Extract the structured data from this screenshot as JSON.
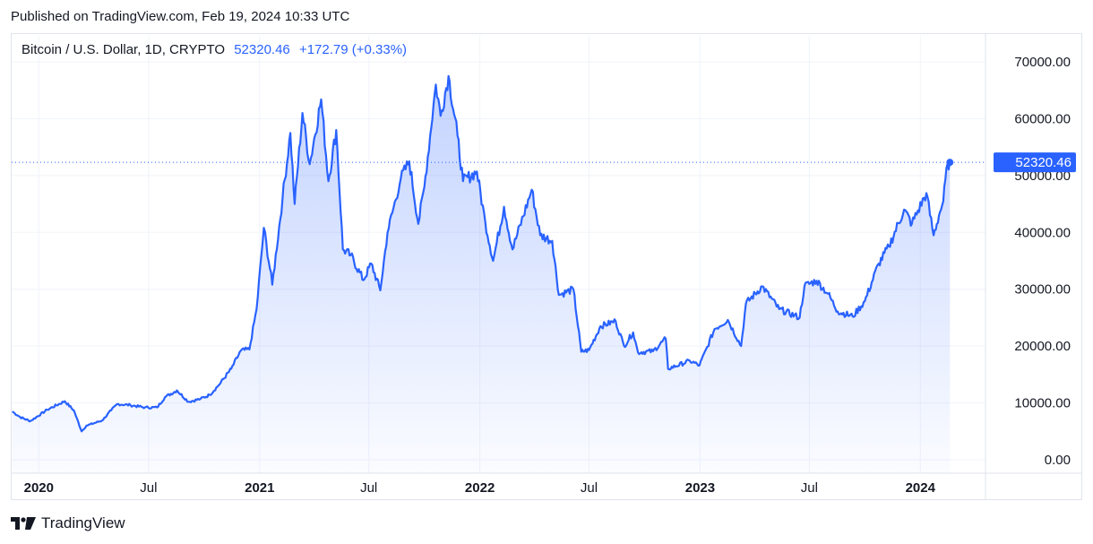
{
  "header": {
    "published": "Published on TradingView.com, Feb 19, 2024 10:33 UTC"
  },
  "legend": {
    "symbol": "Bitcoin / U.S. Dollar, 1D, CRYPTO",
    "price": "52320.46",
    "change": "+172.79 (+0.33%)"
  },
  "footer": {
    "brand": "TradingView"
  },
  "colors": {
    "line": "#2962ff",
    "fill_top": "#2962ff",
    "grid": "#f0f3fa",
    "badge_bg": "#2962ff",
    "badge_text": "#ffffff"
  },
  "chart_data": {
    "type": "area",
    "y_ticks": [
      "0.00",
      "10000.00",
      "20000.00",
      "30000.00",
      "40000.00",
      "50000.00",
      "60000.00",
      "70000.00"
    ],
    "ylim": [
      0,
      75000
    ],
    "x_ticks": [
      {
        "label": "2020",
        "date": "2020-01-01",
        "year": true
      },
      {
        "label": "Jul",
        "date": "2020-07-01",
        "year": false
      },
      {
        "label": "2021",
        "date": "2021-01-01",
        "year": true
      },
      {
        "label": "Jul",
        "date": "2021-07-01",
        "year": false
      },
      {
        "label": "2022",
        "date": "2022-01-01",
        "year": true
      },
      {
        "label": "Jul",
        "date": "2022-07-01",
        "year": false
      },
      {
        "label": "2023",
        "date": "2023-01-01",
        "year": true
      },
      {
        "label": "Jul",
        "date": "2023-07-01",
        "year": false
      },
      {
        "label": "2024",
        "date": "2024-01-01",
        "year": true
      }
    ],
    "xlim": [
      "2019-11-17",
      "2024-04-18"
    ],
    "last_price": {
      "value": 52320.46,
      "label": "52320.46"
    },
    "series": [
      {
        "points": [
          [
            "2019-11-18",
            8500
          ],
          [
            "2019-12-01",
            7500
          ],
          [
            "2019-12-18",
            6800
          ],
          [
            "2020-01-15",
            8800
          ],
          [
            "2020-02-13",
            10300
          ],
          [
            "2020-02-28",
            8700
          ],
          [
            "2020-03-12",
            5000
          ],
          [
            "2020-03-20",
            6000
          ],
          [
            "2020-04-15",
            6900
          ],
          [
            "2020-04-30",
            8700
          ],
          [
            "2020-05-10",
            9800
          ],
          [
            "2020-06-01",
            9600
          ],
          [
            "2020-06-25",
            9200
          ],
          [
            "2020-07-15",
            9200
          ],
          [
            "2020-07-28",
            11000
          ],
          [
            "2020-08-17",
            12200
          ],
          [
            "2020-09-05",
            10200
          ],
          [
            "2020-09-25",
            10700
          ],
          [
            "2020-10-10",
            11400
          ],
          [
            "2020-10-25",
            13100
          ],
          [
            "2020-11-15",
            16000
          ],
          [
            "2020-12-01",
            19200
          ],
          [
            "2020-12-15",
            19400
          ],
          [
            "2020-12-27",
            26500
          ],
          [
            "2021-01-08",
            40800
          ],
          [
            "2021-01-22",
            30800
          ],
          [
            "2021-02-08",
            46000
          ],
          [
            "2021-02-21",
            57500
          ],
          [
            "2021-02-28",
            45000
          ],
          [
            "2021-03-13",
            61000
          ],
          [
            "2021-03-25",
            52000
          ],
          [
            "2021-04-13",
            63400
          ],
          [
            "2021-04-25",
            49000
          ],
          [
            "2021-05-08",
            58000
          ],
          [
            "2021-05-19",
            37000
          ],
          [
            "2021-06-01",
            36000
          ],
          [
            "2021-06-22",
            31600
          ],
          [
            "2021-07-05",
            34500
          ],
          [
            "2021-07-20",
            29800
          ],
          [
            "2021-08-01",
            40000
          ],
          [
            "2021-08-23",
            49500
          ],
          [
            "2021-09-06",
            52500
          ],
          [
            "2021-09-21",
            41500
          ],
          [
            "2021-10-01",
            48000
          ],
          [
            "2021-10-20",
            66000
          ],
          [
            "2021-10-28",
            60500
          ],
          [
            "2021-11-10",
            67500
          ],
          [
            "2021-11-25",
            57000
          ],
          [
            "2021-12-04",
            49000
          ],
          [
            "2021-12-27",
            50700
          ],
          [
            "2022-01-10",
            41800
          ],
          [
            "2022-01-23",
            35000
          ],
          [
            "2022-02-10",
            44500
          ],
          [
            "2022-02-24",
            37000
          ],
          [
            "2022-03-28",
            47500
          ],
          [
            "2022-04-11",
            39500
          ],
          [
            "2022-05-01",
            38500
          ],
          [
            "2022-05-12",
            29000
          ],
          [
            "2022-06-05",
            30000
          ],
          [
            "2022-06-18",
            19000
          ],
          [
            "2022-07-01",
            19300
          ],
          [
            "2022-07-20",
            23500
          ],
          [
            "2022-08-14",
            24400
          ],
          [
            "2022-08-28",
            20000
          ],
          [
            "2022-09-12",
            22400
          ],
          [
            "2022-09-20",
            18900
          ],
          [
            "2022-10-15",
            19100
          ],
          [
            "2022-11-05",
            21300
          ],
          [
            "2022-11-09",
            16000
          ],
          [
            "2022-12-15",
            17400
          ],
          [
            "2022-12-31",
            16600
          ],
          [
            "2023-01-13",
            19900
          ],
          [
            "2023-01-25",
            23000
          ],
          [
            "2023-02-16",
            24600
          ],
          [
            "2023-03-10",
            20000
          ],
          [
            "2023-03-18",
            27500
          ],
          [
            "2023-04-14",
            30500
          ],
          [
            "2023-05-12",
            26500
          ],
          [
            "2023-06-15",
            25000
          ],
          [
            "2023-06-23",
            30600
          ],
          [
            "2023-07-13",
            31500
          ],
          [
            "2023-08-01",
            29200
          ],
          [
            "2023-08-17",
            26100
          ],
          [
            "2023-09-11",
            25200
          ],
          [
            "2023-10-01",
            27900
          ],
          [
            "2023-10-24",
            34500
          ],
          [
            "2023-11-10",
            37500
          ],
          [
            "2023-12-05",
            44000
          ],
          [
            "2023-12-18",
            41500
          ],
          [
            "2024-01-11",
            46900
          ],
          [
            "2024-01-23",
            39500
          ],
          [
            "2024-02-01",
            43000
          ],
          [
            "2024-02-08",
            45500
          ],
          [
            "2024-02-15",
            52000
          ],
          [
            "2024-02-19",
            52320
          ]
        ]
      }
    ]
  }
}
